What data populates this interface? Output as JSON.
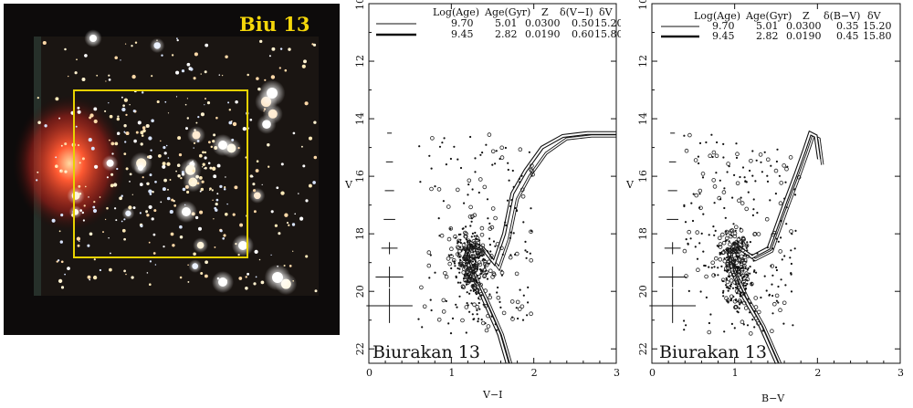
{
  "cluster_image": {
    "label": "Biu 13",
    "colors": {
      "sky": "#0d0b0b",
      "box": "#e8d200",
      "label": "#f5d70a",
      "nebula": "#ff4a2a"
    }
  },
  "legend_columns": {
    "vi": [
      "Log(Age)",
      "Age(Gyr)",
      "Z",
      "δ(V−I)",
      "δV"
    ],
    "bv": [
      "Log(Age)",
      "Age(Gyr)",
      "Z",
      "δ(B−V)",
      "δV"
    ]
  },
  "chart_data": [
    {
      "type": "scatter",
      "name": "cmd-vi",
      "title": "",
      "xlabel": "V−I",
      "ylabel": "V",
      "xlim": [
        0,
        3
      ],
      "ylim": [
        22.5,
        10
      ],
      "x_ticks": [
        "0",
        "1",
        "2",
        "3"
      ],
      "y_ticks": [
        "10",
        "12",
        "14",
        "16",
        "18",
        "20",
        "22"
      ],
      "annotation": "Biurakan 13",
      "legend": [
        {
          "logage": "9.70",
          "age": "5.01",
          "z": "0.0300",
          "dcolor": "0.50",
          "dv": "15.20",
          "style": "thin"
        },
        {
          "logage": "9.45",
          "age": "2.82",
          "z": "0.0190",
          "dcolor": "0.60",
          "dv": "15.80",
          "style": "thick"
        }
      ],
      "isochrones": [
        {
          "name": "9.70",
          "points": [
            [
              1.72,
              22.5
            ],
            [
              1.62,
              21.5
            ],
            [
              1.45,
              20.4
            ],
            [
              1.3,
              19.5
            ],
            [
              1.2,
              18.8
            ],
            [
              1.25,
              18.4
            ],
            [
              1.42,
              18.6
            ],
            [
              1.58,
              19.2
            ],
            [
              1.7,
              18.2
            ],
            [
              1.8,
              16.8
            ],
            [
              1.95,
              16.0
            ],
            [
              2.15,
              15.2
            ],
            [
              2.4,
              14.7
            ],
            [
              2.7,
              14.6
            ],
            [
              3.0,
              14.6
            ]
          ]
        },
        {
          "name": "9.45",
          "points": [
            [
              1.68,
              22.5
            ],
            [
              1.58,
              21.5
            ],
            [
              1.41,
              20.4
            ],
            [
              1.27,
              19.5
            ],
            [
              1.17,
              18.8
            ],
            [
              1.22,
              18.3
            ],
            [
              1.38,
              18.5
            ],
            [
              1.52,
              19.0
            ],
            [
              1.64,
              18.0
            ],
            [
              1.74,
              16.6
            ],
            [
              1.9,
              15.8
            ],
            [
              2.1,
              15.0
            ],
            [
              2.35,
              14.6
            ],
            [
              2.65,
              14.5
            ],
            [
              3.0,
              14.5
            ]
          ]
        }
      ]
    },
    {
      "type": "scatter",
      "name": "cmd-bv",
      "title": "",
      "xlabel": "B−V",
      "ylabel": "V",
      "xlim": [
        0,
        3
      ],
      "ylim": [
        22.5,
        10
      ],
      "x_ticks": [
        "0",
        "1",
        "2",
        "3"
      ],
      "y_ticks": [
        "10",
        "12",
        "14",
        "16",
        "18",
        "20",
        "22"
      ],
      "annotation": "Biurakan 13",
      "legend": [
        {
          "logage": "9.70",
          "age": "5.01",
          "z": "0.0300",
          "dcolor": "0.35",
          "dv": "15.20",
          "style": "thin"
        },
        {
          "logage": "9.45",
          "age": "2.82",
          "z": "0.0190",
          "dcolor": "0.45",
          "dv": "15.80",
          "style": "thick"
        }
      ],
      "isochrones": [
        {
          "name": "9.70",
          "points": [
            [
              1.55,
              22.5
            ],
            [
              1.35,
              21.2
            ],
            [
              1.15,
              20.2
            ],
            [
              1.0,
              19.3
            ],
            [
              0.96,
              18.7
            ],
            [
              1.05,
              18.5
            ],
            [
              1.25,
              18.9
            ],
            [
              1.45,
              18.6
            ],
            [
              1.55,
              17.8
            ],
            [
              1.65,
              17.0
            ],
            [
              1.78,
              16.0
            ],
            [
              1.88,
              15.2
            ],
            [
              1.95,
              14.6
            ],
            [
              2.02,
              14.7
            ],
            [
              2.06,
              15.6
            ]
          ]
        },
        {
          "name": "9.45",
          "points": [
            [
              1.51,
              22.5
            ],
            [
              1.31,
              21.2
            ],
            [
              1.11,
              20.2
            ],
            [
              0.97,
              19.3
            ],
            [
              0.93,
              18.6
            ],
            [
              1.01,
              18.4
            ],
            [
              1.21,
              18.8
            ],
            [
              1.41,
              18.5
            ],
            [
              1.51,
              17.7
            ],
            [
              1.61,
              16.9
            ],
            [
              1.74,
              15.9
            ],
            [
              1.84,
              15.1
            ],
            [
              1.91,
              14.5
            ],
            [
              1.98,
              14.6
            ],
            [
              2.02,
              15.4
            ]
          ]
        }
      ]
    }
  ]
}
